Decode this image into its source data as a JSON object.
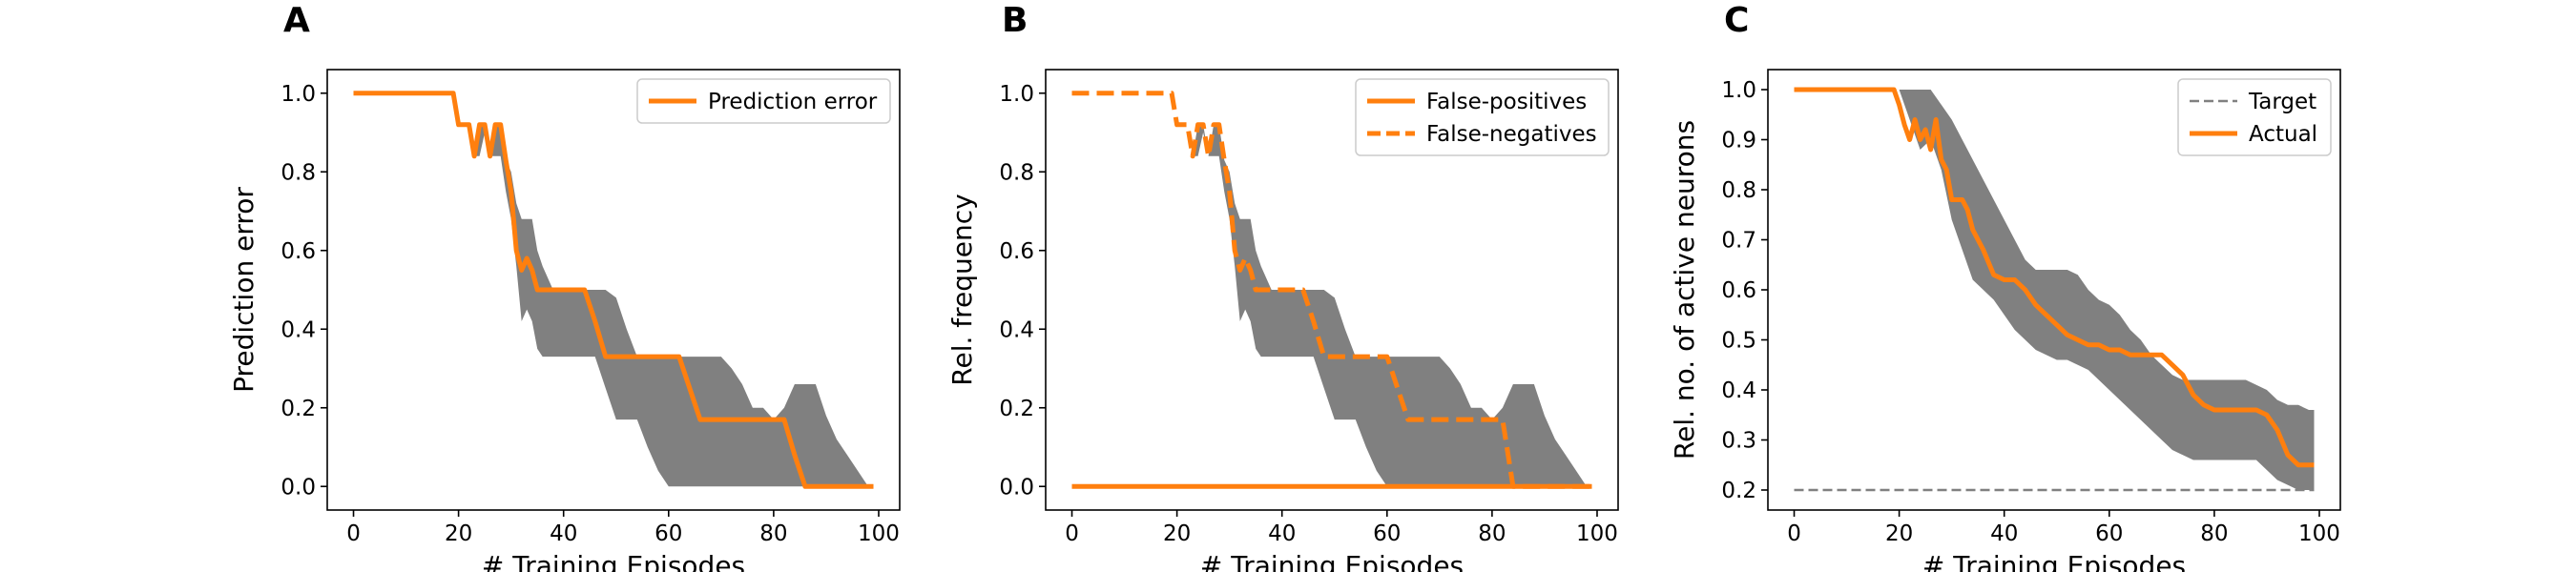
{
  "colors": {
    "orange": "#ff7f0e",
    "band": "#808080",
    "target": "#808080"
  },
  "chart_data": [
    {
      "type": "line",
      "panel_label": "A",
      "xlabel": "# Training Episodes",
      "ylabel": "Prediction error",
      "xlim": [
        -5,
        104
      ],
      "ylim": [
        -0.06,
        1.06
      ],
      "xticks": [
        0,
        20,
        40,
        60,
        80,
        100
      ],
      "xtick_labels": [
        "0",
        "20",
        "40",
        "60",
        "80",
        "100"
      ],
      "yticks": [
        0.0,
        0.2,
        0.4,
        0.6,
        0.8,
        1.0
      ],
      "ytick_labels": [
        "0.0",
        "0.2",
        "0.4",
        "0.6",
        "0.8",
        "1.0"
      ],
      "legend_position": "top-right",
      "band": {
        "x": [
          0,
          19,
          20,
          21,
          22,
          23,
          24,
          25,
          26,
          27,
          28,
          29,
          30,
          31,
          32,
          33,
          34,
          35,
          36,
          38,
          40,
          42,
          44,
          46,
          48,
          50,
          52,
          54,
          56,
          58,
          60,
          62,
          64,
          66,
          68,
          70,
          72,
          74,
          76,
          78,
          80,
          82,
          84,
          86,
          88,
          90,
          92,
          94,
          96,
          98,
          99
        ],
        "upper": [
          1.0,
          1.0,
          0.92,
          0.92,
          0.92,
          0.84,
          0.92,
          0.92,
          0.84,
          0.92,
          0.92,
          0.83,
          0.8,
          0.72,
          0.68,
          0.68,
          0.68,
          0.6,
          0.56,
          0.5,
          0.5,
          0.5,
          0.5,
          0.5,
          0.5,
          0.48,
          0.4,
          0.33,
          0.33,
          0.33,
          0.33,
          0.33,
          0.33,
          0.33,
          0.33,
          0.33,
          0.3,
          0.26,
          0.2,
          0.2,
          0.17,
          0.2,
          0.26,
          0.26,
          0.26,
          0.18,
          0.12,
          0.08,
          0.04,
          0.0,
          0.0
        ],
        "lower": [
          1.0,
          1.0,
          0.92,
          0.92,
          0.92,
          0.84,
          0.84,
          0.9,
          0.84,
          0.84,
          0.84,
          0.75,
          0.68,
          0.56,
          0.42,
          0.45,
          0.42,
          0.35,
          0.33,
          0.33,
          0.33,
          0.33,
          0.33,
          0.33,
          0.25,
          0.17,
          0.17,
          0.17,
          0.1,
          0.04,
          0.0,
          0.0,
          0.0,
          0.0,
          0.0,
          0.0,
          0.0,
          0.0,
          0.0,
          0.0,
          0.0,
          0.0,
          0.0,
          0.0,
          0.0,
          0.0,
          0.0,
          0.0,
          0.0,
          0.0,
          0.0
        ]
      },
      "series": [
        {
          "name": "Prediction error",
          "style": "solid",
          "x": [
            0,
            19,
            20,
            21,
            22,
            23,
            24,
            25,
            26,
            27,
            28,
            29,
            30,
            31,
            32,
            33,
            34,
            35,
            36,
            38,
            40,
            42,
            44,
            46,
            48,
            50,
            52,
            54,
            56,
            58,
            60,
            62,
            64,
            66,
            68,
            70,
            72,
            74,
            76,
            78,
            80,
            82,
            84,
            86,
            88,
            90,
            92,
            94,
            96,
            98,
            99
          ],
          "y": [
            1.0,
            1.0,
            0.92,
            0.92,
            0.92,
            0.84,
            0.92,
            0.92,
            0.84,
            0.92,
            0.92,
            0.83,
            0.75,
            0.6,
            0.55,
            0.58,
            0.55,
            0.5,
            0.5,
            0.5,
            0.5,
            0.5,
            0.5,
            0.42,
            0.33,
            0.33,
            0.33,
            0.33,
            0.33,
            0.33,
            0.33,
            0.33,
            0.25,
            0.17,
            0.17,
            0.17,
            0.17,
            0.17,
            0.17,
            0.17,
            0.17,
            0.17,
            0.08,
            0.0,
            0.0,
            0.0,
            0.0,
            0.0,
            0.0,
            0.0,
            0.0
          ]
        }
      ]
    },
    {
      "type": "line",
      "panel_label": "B",
      "xlabel": "# Training Episodes",
      "ylabel": "Rel. frequency",
      "xlim": [
        -5,
        104
      ],
      "ylim": [
        -0.06,
        1.06
      ],
      "xticks": [
        0,
        20,
        40,
        60,
        80,
        100
      ],
      "xtick_labels": [
        "0",
        "20",
        "40",
        "60",
        "80",
        "100"
      ],
      "yticks": [
        0.0,
        0.2,
        0.4,
        0.6,
        0.8,
        1.0
      ],
      "ytick_labels": [
        "0.0",
        "0.2",
        "0.4",
        "0.6",
        "0.8",
        "1.0"
      ],
      "legend_position": "top-right",
      "band": {
        "x": [
          0,
          19,
          20,
          21,
          22,
          23,
          24,
          25,
          26,
          27,
          28,
          29,
          30,
          31,
          32,
          33,
          34,
          35,
          36,
          38,
          40,
          42,
          44,
          46,
          48,
          50,
          52,
          54,
          56,
          58,
          60,
          62,
          64,
          66,
          68,
          70,
          72,
          74,
          76,
          78,
          80,
          82,
          84,
          86,
          88,
          90,
          92,
          94,
          96,
          98,
          99
        ],
        "upper": [
          1.0,
          1.0,
          0.92,
          0.92,
          0.92,
          0.84,
          0.92,
          0.92,
          0.84,
          0.92,
          0.92,
          0.83,
          0.8,
          0.72,
          0.68,
          0.68,
          0.68,
          0.6,
          0.56,
          0.5,
          0.5,
          0.5,
          0.5,
          0.5,
          0.5,
          0.48,
          0.4,
          0.33,
          0.33,
          0.33,
          0.33,
          0.33,
          0.33,
          0.33,
          0.33,
          0.33,
          0.3,
          0.26,
          0.2,
          0.2,
          0.17,
          0.2,
          0.26,
          0.26,
          0.26,
          0.18,
          0.12,
          0.08,
          0.04,
          0.0,
          0.0
        ],
        "lower": [
          1.0,
          1.0,
          0.92,
          0.92,
          0.92,
          0.84,
          0.84,
          0.9,
          0.84,
          0.84,
          0.84,
          0.75,
          0.68,
          0.56,
          0.42,
          0.45,
          0.42,
          0.35,
          0.33,
          0.33,
          0.33,
          0.33,
          0.33,
          0.33,
          0.25,
          0.17,
          0.17,
          0.17,
          0.1,
          0.04,
          0.0,
          0.0,
          0.0,
          0.0,
          0.0,
          0.0,
          0.0,
          0.0,
          0.0,
          0.0,
          0.0,
          0.0,
          0.0,
          0.0,
          0.0,
          0.0,
          0.0,
          0.0,
          0.0,
          0.0,
          0.0
        ]
      },
      "series": [
        {
          "name": "False-positives",
          "style": "solid",
          "x": [
            0,
            99
          ],
          "y": [
            0.0,
            0.0
          ]
        },
        {
          "name": "False-negatives",
          "style": "dashed",
          "x": [
            0,
            19,
            20,
            21,
            22,
            23,
            24,
            25,
            26,
            27,
            28,
            29,
            30,
            31,
            32,
            33,
            34,
            35,
            36,
            38,
            40,
            42,
            44,
            46,
            48,
            50,
            52,
            54,
            56,
            58,
            60,
            62,
            64,
            66,
            68,
            70,
            72,
            74,
            76,
            78,
            80,
            82,
            84,
            86,
            88,
            90,
            92,
            94,
            96,
            98,
            99
          ],
          "y": [
            1.0,
            1.0,
            0.92,
            0.92,
            0.92,
            0.84,
            0.92,
            0.92,
            0.84,
            0.92,
            0.92,
            0.83,
            0.75,
            0.6,
            0.55,
            0.58,
            0.55,
            0.5,
            0.5,
            0.5,
            0.5,
            0.5,
            0.5,
            0.42,
            0.33,
            0.33,
            0.33,
            0.33,
            0.33,
            0.33,
            0.33,
            0.25,
            0.17,
            0.17,
            0.17,
            0.17,
            0.17,
            0.17,
            0.17,
            0.17,
            0.17,
            0.17,
            0.0,
            0.0,
            0.0,
            0.0,
            0.0,
            0.0,
            0.0,
            0.0,
            0.0
          ]
        }
      ]
    },
    {
      "type": "line",
      "panel_label": "C",
      "xlabel": "# Training Episodes",
      "ylabel": "Rel. no. of active neurons",
      "xlim": [
        -5,
        104
      ],
      "ylim": [
        0.16,
        1.04
      ],
      "xticks": [
        0,
        20,
        40,
        60,
        80,
        100
      ],
      "xtick_labels": [
        "0",
        "20",
        "40",
        "60",
        "80",
        "100"
      ],
      "yticks": [
        0.2,
        0.3,
        0.4,
        0.5,
        0.6,
        0.7,
        0.8,
        0.9,
        1.0
      ],
      "ytick_labels": [
        "0.2",
        "0.3",
        "0.4",
        "0.5",
        "0.6",
        "0.7",
        "0.8",
        "0.9",
        "1.0"
      ],
      "legend_position": "top-right",
      "band": {
        "x": [
          0,
          19,
          20,
          22,
          24,
          26,
          28,
          30,
          32,
          34,
          36,
          38,
          40,
          42,
          44,
          46,
          48,
          50,
          52,
          54,
          56,
          58,
          60,
          62,
          64,
          66,
          68,
          70,
          72,
          74,
          76,
          78,
          80,
          82,
          84,
          86,
          88,
          90,
          92,
          94,
          96,
          98,
          99
        ],
        "upper": [
          1.0,
          1.0,
          1.0,
          1.0,
          1.0,
          1.0,
          0.97,
          0.94,
          0.9,
          0.86,
          0.82,
          0.78,
          0.74,
          0.7,
          0.66,
          0.64,
          0.64,
          0.64,
          0.64,
          0.63,
          0.6,
          0.58,
          0.57,
          0.55,
          0.52,
          0.5,
          0.47,
          0.45,
          0.43,
          0.42,
          0.42,
          0.42,
          0.42,
          0.42,
          0.42,
          0.42,
          0.41,
          0.4,
          0.38,
          0.37,
          0.37,
          0.36,
          0.36
        ],
        "lower": [
          1.0,
          1.0,
          1.0,
          0.94,
          0.88,
          0.9,
          0.84,
          0.74,
          0.68,
          0.62,
          0.6,
          0.58,
          0.55,
          0.52,
          0.5,
          0.48,
          0.47,
          0.46,
          0.46,
          0.45,
          0.44,
          0.42,
          0.4,
          0.38,
          0.36,
          0.34,
          0.32,
          0.3,
          0.28,
          0.27,
          0.26,
          0.26,
          0.26,
          0.26,
          0.26,
          0.26,
          0.26,
          0.24,
          0.22,
          0.21,
          0.2,
          0.2,
          0.2
        ]
      },
      "series": [
        {
          "name": "Target",
          "style": "dashed-thin",
          "x": [
            0,
            99
          ],
          "y": [
            0.2,
            0.2
          ]
        },
        {
          "name": "Actual",
          "style": "solid",
          "x": [
            0,
            19,
            20,
            21,
            22,
            23,
            24,
            25,
            26,
            27,
            28,
            29,
            30,
            31,
            32,
            33,
            34,
            36,
            38,
            40,
            42,
            44,
            46,
            48,
            50,
            52,
            54,
            56,
            58,
            60,
            62,
            64,
            66,
            68,
            70,
            72,
            74,
            76,
            78,
            80,
            82,
            84,
            86,
            88,
            90,
            92,
            94,
            96,
            98,
            99
          ],
          "y": [
            1.0,
            1.0,
            0.97,
            0.93,
            0.9,
            0.94,
            0.9,
            0.92,
            0.88,
            0.94,
            0.86,
            0.84,
            0.78,
            0.78,
            0.78,
            0.76,
            0.72,
            0.68,
            0.63,
            0.62,
            0.62,
            0.6,
            0.57,
            0.55,
            0.53,
            0.51,
            0.5,
            0.49,
            0.49,
            0.48,
            0.48,
            0.47,
            0.47,
            0.47,
            0.47,
            0.45,
            0.43,
            0.39,
            0.37,
            0.36,
            0.36,
            0.36,
            0.36,
            0.36,
            0.35,
            0.32,
            0.27,
            0.25,
            0.25,
            0.25
          ]
        }
      ]
    }
  ]
}
